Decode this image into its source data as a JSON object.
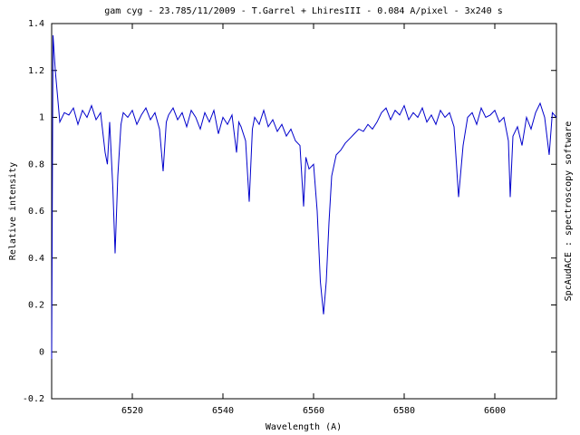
{
  "chart_data": {
    "type": "line",
    "title": "gam cyg - 23.785/11/2009 - T.Garrel + LhiresIII - 0.084 A/pixel - 3x240 s",
    "x_label": "Wavelength (A)",
    "y_label": "Relative intensity",
    "side_label": "SpcAudACE : spectroscopy software",
    "color": "#0000cc",
    "xlim": [
      6502.2,
      6613.6
    ],
    "ylim": [
      -0.2,
      1.4
    ],
    "xticks": [
      6520,
      6540,
      6560,
      6580,
      6600
    ],
    "yticks": [
      -0.2,
      0,
      0.2,
      0.4,
      0.6,
      0.8,
      1,
      1.2,
      1.4
    ],
    "grid": false,
    "x": [
      6502.2,
      6502.5,
      6503,
      6504,
      6505,
      6506,
      6507,
      6508,
      6509,
      6510,
      6511,
      6512,
      6513,
      6514,
      6514.5,
      6515,
      6515.7,
      6516.2,
      6516.8,
      6517.5,
      6518,
      6519,
      6520,
      6521,
      6522,
      6523,
      6524,
      6525,
      6526,
      6526.8,
      6527.5,
      6528,
      6529,
      6530,
      6531,
      6532,
      6533,
      6534,
      6535,
      6536,
      6537,
      6538,
      6539,
      6540,
      6541,
      6542,
      6543,
      6543.5,
      6544,
      6545,
      6545.8,
      6546.5,
      6547,
      6548,
      6549,
      6550,
      6551,
      6552,
      6553,
      6554,
      6555,
      6556,
      6557,
      6557.8,
      6558.3,
      6559,
      6560,
      6560.8,
      6561.5,
      6562.2,
      6562.8,
      6563.4,
      6564,
      6565,
      6566,
      6567,
      6568,
      6569,
      6570,
      6571,
      6572,
      6573,
      6574,
      6575,
      6576,
      6577,
      6578,
      6579,
      6580,
      6581,
      6582,
      6583,
      6584,
      6585,
      6586,
      6587,
      6588,
      6589,
      6590,
      6591,
      6592,
      6593,
      6594,
      6595,
      6596,
      6597,
      6598,
      6599,
      6600,
      6601,
      6602,
      6603,
      6603.4,
      6604,
      6605,
      6606,
      6607,
      6608,
      6609,
      6610,
      6611,
      6612,
      6612.7,
      6613.6
    ],
    "values": [
      -0.03,
      1.35,
      1.2,
      0.98,
      1.02,
      1.01,
      1.04,
      0.97,
      1.03,
      1.0,
      1.05,
      0.99,
      1.02,
      0.85,
      0.8,
      0.98,
      0.7,
      0.42,
      0.75,
      0.97,
      1.02,
      1.0,
      1.03,
      0.97,
      1.01,
      1.04,
      0.99,
      1.02,
      0.95,
      0.77,
      0.98,
      1.01,
      1.04,
      0.99,
      1.02,
      0.96,
      1.03,
      1.0,
      0.95,
      1.02,
      0.98,
      1.03,
      0.93,
      1.0,
      0.97,
      1.01,
      0.85,
      0.98,
      0.96,
      0.9,
      0.64,
      0.95,
      1.0,
      0.97,
      1.03,
      0.96,
      0.99,
      0.94,
      0.97,
      0.92,
      0.95,
      0.9,
      0.88,
      0.62,
      0.83,
      0.78,
      0.8,
      0.6,
      0.3,
      0.16,
      0.3,
      0.55,
      0.75,
      0.84,
      0.86,
      0.89,
      0.91,
      0.93,
      0.95,
      0.94,
      0.97,
      0.95,
      0.98,
      1.02,
      1.04,
      0.99,
      1.03,
      1.01,
      1.05,
      0.99,
      1.02,
      1.0,
      1.04,
      0.98,
      1.01,
      0.97,
      1.03,
      1.0,
      1.02,
      0.96,
      0.66,
      0.88,
      1.0,
      1.02,
      0.97,
      1.04,
      1.0,
      1.01,
      1.03,
      0.98,
      1.0,
      0.9,
      0.66,
      0.92,
      0.96,
      0.88,
      1.0,
      0.95,
      1.02,
      1.06,
      1.0,
      0.84,
      1.02,
      1.0
    ]
  }
}
